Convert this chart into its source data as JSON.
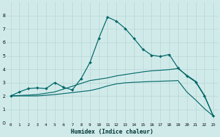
{
  "xlabel": "Humidex (Indice chaleur)",
  "bg_color": "#d0eaea",
  "grid_color": "#b8d4d4",
  "line_color": "#006666",
  "xlim": [
    -0.5,
    23.5
  ],
  "ylim": [
    0,
    9
  ],
  "xticks": [
    0,
    1,
    2,
    3,
    4,
    5,
    6,
    7,
    8,
    9,
    10,
    11,
    12,
    13,
    14,
    15,
    16,
    17,
    18,
    19,
    20,
    21,
    22,
    23
  ],
  "yticks": [
    0,
    1,
    2,
    3,
    4,
    5,
    6,
    7,
    8
  ],
  "line1_x": [
    0,
    1,
    2,
    3,
    4,
    5,
    6,
    7,
    8,
    9,
    10,
    11,
    12,
    13,
    14,
    15,
    16,
    17,
    18,
    19,
    20,
    21,
    22,
    23
  ],
  "line1_y": [
    2.0,
    2.3,
    2.55,
    2.6,
    2.55,
    3.0,
    2.65,
    2.45,
    3.3,
    4.5,
    6.3,
    7.9,
    7.6,
    7.05,
    6.3,
    5.5,
    5.05,
    4.95,
    5.1,
    4.1,
    3.5,
    3.05,
    2.0,
    0.5
  ],
  "line2_x": [
    0,
    3,
    5,
    9,
    10,
    11,
    12,
    13,
    14,
    15,
    16,
    17,
    18,
    19,
    20,
    21,
    22,
    23
  ],
  "line2_y": [
    2.0,
    2.1,
    2.3,
    3.15,
    3.25,
    3.35,
    3.5,
    3.6,
    3.7,
    3.8,
    3.88,
    3.92,
    3.97,
    4.05,
    3.55,
    3.1,
    2.05,
    0.5
  ],
  "line3_x": [
    0,
    3,
    5,
    9,
    10,
    11,
    12,
    13,
    14,
    15,
    16,
    17,
    18,
    19,
    20,
    21,
    22,
    23
  ],
  "line3_y": [
    2.0,
    2.0,
    2.1,
    2.4,
    2.55,
    2.75,
    2.9,
    2.98,
    3.02,
    3.05,
    3.08,
    3.1,
    3.12,
    3.15,
    2.3,
    1.7,
    1.05,
    0.5
  ]
}
